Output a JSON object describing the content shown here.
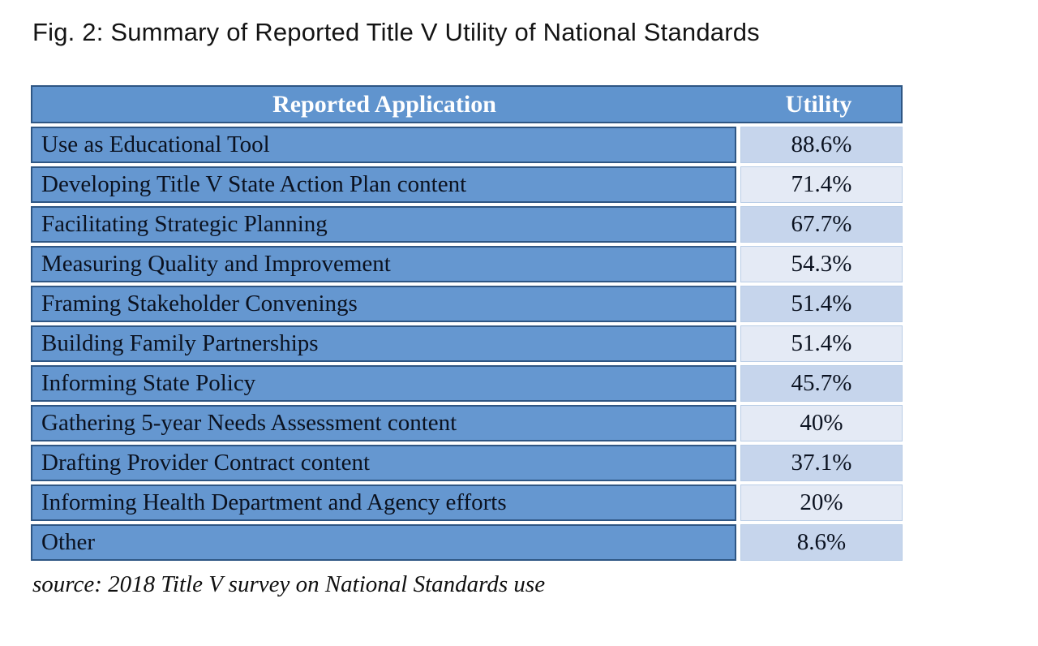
{
  "figure": {
    "caption": "Fig. 2: Summary of Reported Title V Utility of National Standards",
    "source_note": "source: 2018 Title V survey on National Standards use"
  },
  "table": {
    "columns": [
      {
        "label": "Reported Application"
      },
      {
        "label": "Utility"
      }
    ],
    "rows": [
      {
        "application": "Use as Educational Tool",
        "utility": "88.6%"
      },
      {
        "application": "Developing Title V State Action Plan content",
        "utility": "71.4%"
      },
      {
        "application": "Facilitating Strategic Planning",
        "utility": "67.7%"
      },
      {
        "application": "Measuring Quality and Improvement",
        "utility": "54.3%"
      },
      {
        "application": "Framing Stakeholder Convenings",
        "utility": "51.4%"
      },
      {
        "application": "Building Family Partnerships",
        "utility": "51.4%"
      },
      {
        "application": "Informing State Policy",
        "utility": "45.7%"
      },
      {
        "application": "Gathering 5-year Needs Assessment content",
        "utility": "40%"
      },
      {
        "application": "Drafting Provider Contract content",
        "utility": "37.1%"
      },
      {
        "application": "Informing Health Department and Agency efforts",
        "utility": "20%"
      },
      {
        "application": "Other",
        "utility": "8.6%"
      }
    ]
  },
  "chart_data": {
    "type": "table",
    "title": "Fig. 2: Summary of Reported Title V Utility of National Standards",
    "columns": [
      "Reported Application",
      "Utility"
    ],
    "categories": [
      "Use as Educational Tool",
      "Developing Title V State Action Plan content",
      "Facilitating Strategic Planning",
      "Measuring Quality and Improvement",
      "Framing Stakeholder Convenings",
      "Building Family Partnerships",
      "Informing State Policy",
      "Gathering 5-year Needs Assessment content",
      "Drafting Provider Contract content",
      "Informing Health Department and Agency efforts",
      "Other"
    ],
    "values_percent": [
      88.6,
      71.4,
      67.7,
      54.3,
      51.4,
      51.4,
      45.7,
      40,
      37.1,
      20,
      8.6
    ],
    "source": "2018 Title V survey on National Standards use"
  },
  "colors": {
    "header_bg": "#6094CE",
    "header_text": "#FFFFFF",
    "row_bg": "#6597D0",
    "row_border": "#2E5684",
    "utility_odd_bg": "#C6D5EC",
    "utility_even_bg": "#E4EAF5",
    "utility_border": "#B9CDE6",
    "text": "#0B1220"
  }
}
